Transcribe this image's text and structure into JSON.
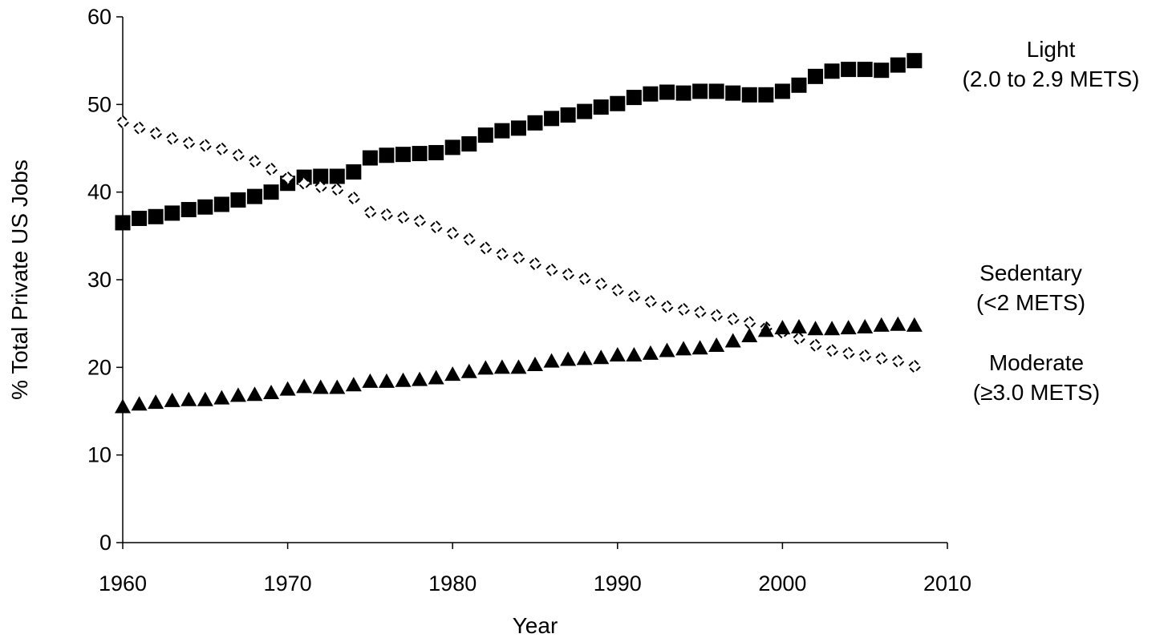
{
  "chart_data": {
    "type": "scatter",
    "title": "",
    "xlabel": "Year",
    "ylabel": "% Total Private US Jobs",
    "xlim": [
      1960,
      2010
    ],
    "ylim": [
      0,
      60
    ],
    "xticks": [
      "1960",
      "1970",
      "1980",
      "1990",
      "2000",
      "2010"
    ],
    "yticks": [
      "0",
      "10",
      "20",
      "30",
      "40",
      "50",
      "60"
    ],
    "grid": false,
    "legend": "none",
    "x": [
      1960,
      1961,
      1962,
      1963,
      1964,
      1965,
      1966,
      1967,
      1968,
      1969,
      1970,
      1971,
      1972,
      1973,
      1974,
      1975,
      1976,
      1977,
      1978,
      1979,
      1980,
      1981,
      1982,
      1983,
      1984,
      1985,
      1986,
      1987,
      1988,
      1989,
      1990,
      1991,
      1992,
      1993,
      1994,
      1995,
      1996,
      1997,
      1998,
      1999,
      2000,
      2001,
      2002,
      2003,
      2004,
      2005,
      2006,
      2007,
      2008
    ],
    "series": [
      {
        "label_lines": [
          "Light",
          "(2.0 to 2.9 METS)"
        ],
        "marker": "square",
        "color": "#000000",
        "values": [
          36.5,
          37.0,
          37.2,
          37.6,
          38.0,
          38.3,
          38.6,
          39.1,
          39.5,
          40.0,
          41.0,
          41.7,
          41.8,
          41.8,
          42.3,
          43.9,
          44.2,
          44.3,
          44.4,
          44.5,
          45.1,
          45.5,
          46.5,
          47.0,
          47.3,
          47.9,
          48.4,
          48.8,
          49.2,
          49.7,
          50.1,
          50.8,
          51.2,
          51.4,
          51.3,
          51.5,
          51.5,
          51.3,
          51.1,
          51.1,
          51.5,
          52.2,
          53.2,
          53.8,
          54.0,
          54.0,
          53.9,
          54.5,
          55.0
        ]
      },
      {
        "label_lines": [
          "Sedentary",
          "(<2 METS)"
        ],
        "marker": "open-diamond",
        "color": "#000000",
        "values": [
          48.0,
          47.3,
          46.7,
          46.1,
          45.6,
          45.3,
          44.9,
          44.2,
          43.5,
          42.6,
          41.6,
          41.0,
          40.6,
          40.3,
          39.3,
          37.7,
          37.4,
          37.1,
          36.7,
          36.0,
          35.3,
          34.6,
          33.6,
          32.9,
          32.5,
          31.8,
          31.1,
          30.6,
          30.1,
          29.5,
          28.8,
          28.1,
          27.5,
          26.9,
          26.6,
          26.3,
          25.9,
          25.5,
          25.1,
          24.5,
          24.0,
          23.3,
          22.5,
          21.9,
          21.6,
          21.3,
          21.0,
          20.7,
          20.1
        ]
      },
      {
        "label_lines": [
          "Moderate",
          "(≥3.0 METS)"
        ],
        "marker": "triangle",
        "color": "#000000",
        "values": [
          15.5,
          15.8,
          16.0,
          16.2,
          16.3,
          16.3,
          16.5,
          16.8,
          16.9,
          17.1,
          17.5,
          17.8,
          17.7,
          17.7,
          18.0,
          18.4,
          18.4,
          18.5,
          18.6,
          18.8,
          19.2,
          19.5,
          19.9,
          20.0,
          20.0,
          20.3,
          20.7,
          20.9,
          21.0,
          21.1,
          21.4,
          21.4,
          21.6,
          21.9,
          22.1,
          22.2,
          22.5,
          23.0,
          23.6,
          24.2,
          24.5,
          24.6,
          24.4,
          24.4,
          24.5,
          24.6,
          24.8,
          24.9,
          24.8
        ]
      }
    ]
  }
}
